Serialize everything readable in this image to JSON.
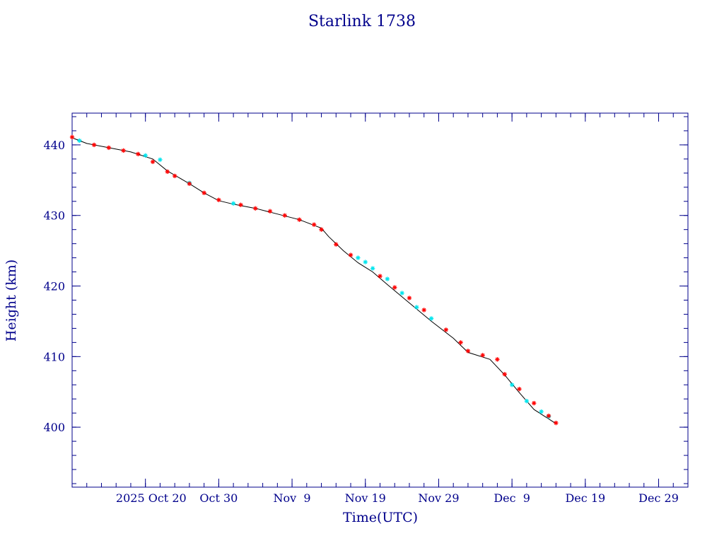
{
  "chart_data": {
    "type": "scatter",
    "title": "Starlink 1738",
    "xlabel": "Time(UTC)",
    "ylabel": "Height (km)",
    "x_axis": {
      "type": "date",
      "range": [
        "2025-10-10",
        "2026-01-02"
      ],
      "tick_labels": [
        "2025 Oct 20",
        "Oct 30",
        "Nov  9",
        "Nov 19",
        "Nov 29",
        "Dec  9",
        "Dec 19",
        "Dec 29"
      ],
      "tick_dates": [
        "2025-10-20",
        "2025-10-30",
        "2025-11-09",
        "2025-11-19",
        "2025-11-29",
        "2025-12-09",
        "2025-12-19",
        "2025-12-29"
      ]
    },
    "y_axis": {
      "range": [
        391.5,
        444.5
      ],
      "ticks": [
        400,
        410,
        420,
        430,
        440
      ]
    },
    "grid": false,
    "legend": "none",
    "series": [
      {
        "style": "line",
        "color": "#000000",
        "x": [
          "2025-10-10",
          "2025-10-12",
          "2025-10-15",
          "2025-10-18",
          "2025-10-21",
          "2025-10-23",
          "2025-10-26",
          "2025-10-28",
          "2025-10-30",
          "2025-11-01",
          "2025-11-04",
          "2025-11-07",
          "2025-11-10",
          "2025-11-13",
          "2025-11-14",
          "2025-11-16",
          "2025-11-18",
          "2025-11-20",
          "2025-11-22",
          "2025-11-25",
          "2025-11-28",
          "2025-12-01",
          "2025-12-03",
          "2025-12-06",
          "2025-12-08",
          "2025-12-10",
          "2025-12-12",
          "2025-12-15"
        ],
        "y": [
          441.0,
          440.2,
          439.6,
          439.0,
          438.0,
          436.3,
          434.5,
          433.2,
          432.1,
          431.6,
          431.0,
          430.2,
          429.4,
          428.2,
          427.0,
          425.0,
          423.3,
          422.0,
          420.2,
          417.6,
          415.0,
          412.6,
          410.6,
          409.6,
          407.4,
          404.9,
          402.5,
          400.5
        ]
      },
      {
        "style": "markers",
        "marker": "asterisk",
        "color": "#00e5ee",
        "x": [
          "2025-10-11",
          "2025-10-20",
          "2025-10-22",
          "2025-10-26",
          "2025-11-01",
          "2025-11-18",
          "2025-11-19",
          "2025-11-20",
          "2025-11-22",
          "2025-11-24",
          "2025-11-26",
          "2025-11-28",
          "2025-12-09",
          "2025-12-11",
          "2025-12-13",
          "2025-12-14"
        ],
        "y": [
          440.6,
          438.5,
          437.9,
          434.6,
          431.7,
          424.0,
          423.4,
          422.5,
          421.0,
          419.0,
          417.0,
          415.4,
          406.0,
          403.7,
          402.2,
          401.5
        ]
      },
      {
        "style": "markers",
        "marker": "asterisk",
        "color": "#ff0000",
        "x": [
          "2025-10-10",
          "2025-10-13",
          "2025-10-15",
          "2025-10-17",
          "2025-10-19",
          "2025-10-21",
          "2025-10-23",
          "2025-10-24",
          "2025-10-26",
          "2025-10-28",
          "2025-10-30",
          "2025-11-02",
          "2025-11-04",
          "2025-11-06",
          "2025-11-08",
          "2025-11-10",
          "2025-11-12",
          "2025-11-13",
          "2025-11-15",
          "2025-11-17",
          "2025-11-21",
          "2025-11-23",
          "2025-11-25",
          "2025-11-27",
          "2025-11-30",
          "2025-12-02",
          "2025-12-03",
          "2025-12-05",
          "2025-12-07",
          "2025-12-08",
          "2025-12-10",
          "2025-12-12",
          "2025-12-14",
          "2025-12-15"
        ],
        "y": [
          441.1,
          440.0,
          439.6,
          439.2,
          438.7,
          437.6,
          436.2,
          435.6,
          434.5,
          433.2,
          432.2,
          431.5,
          431.0,
          430.6,
          430.0,
          429.4,
          428.7,
          428.0,
          425.9,
          424.4,
          421.4,
          419.8,
          418.3,
          416.6,
          413.8,
          412.0,
          410.8,
          410.2,
          409.6,
          407.5,
          405.4,
          403.4,
          401.6,
          400.6
        ]
      }
    ]
  }
}
